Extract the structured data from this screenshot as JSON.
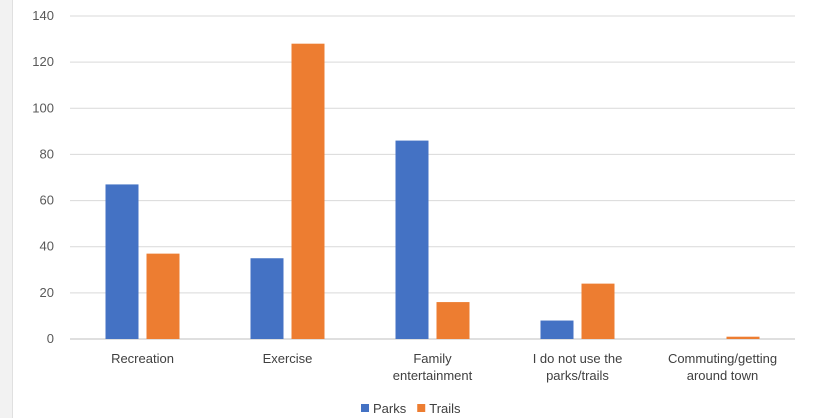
{
  "chart_data": {
    "type": "bar",
    "title": "",
    "xlabel": "",
    "ylabel": "",
    "ylim": [
      0,
      140
    ],
    "yticks": [
      0,
      20,
      40,
      60,
      80,
      100,
      120,
      140
    ],
    "categories": [
      [
        "Recreation"
      ],
      [
        "Exercise"
      ],
      [
        "Family",
        "entertainment"
      ],
      [
        "I do not use the",
        "parks/trails"
      ],
      [
        "Commuting/getting",
        "around town"
      ]
    ],
    "series": [
      {
        "name": "Parks",
        "color": "#4472C4",
        "values": [
          67,
          35,
          86,
          8,
          0
        ]
      },
      {
        "name": "Trails",
        "color": "#ED7D31",
        "values": [
          37,
          128,
          16,
          24,
          1
        ]
      }
    ],
    "grid": true,
    "legend": "bottom"
  }
}
